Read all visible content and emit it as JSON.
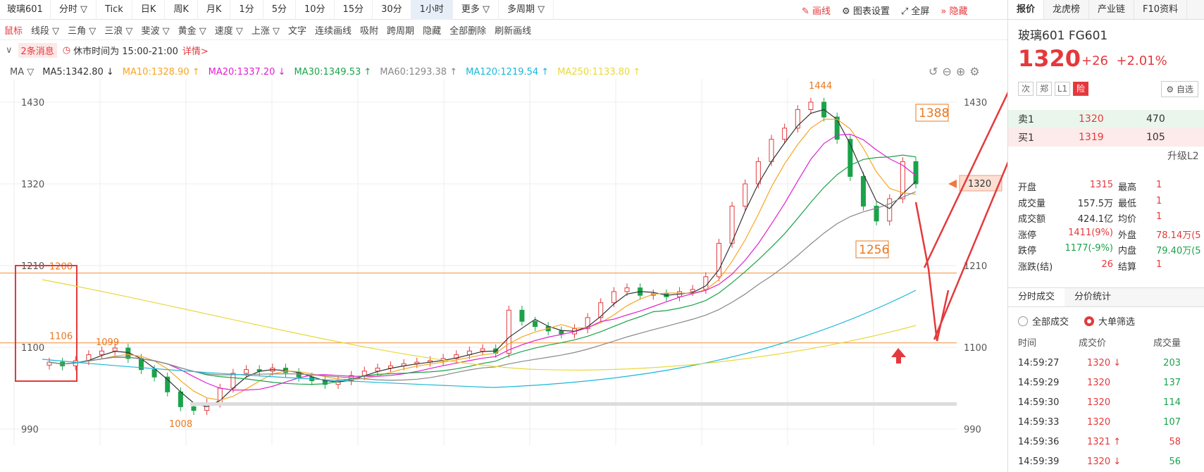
{
  "topbar": {
    "symbol": "玻璃601",
    "tabs": [
      "分时 ▽",
      "Tick",
      "日K",
      "周K",
      "月K",
      "1分",
      "5分",
      "10分",
      "15分",
      "30分",
      "1小时",
      "更多 ▽",
      "多周期 ▽"
    ],
    "active_tab": "1小时",
    "right": {
      "draw": "画线",
      "settings": "图表设置",
      "fullscreen": "全屏",
      "hide": "隐藏"
    }
  },
  "drawbar": {
    "items": [
      "鼠标",
      "线段 ▽",
      "三角 ▽",
      "三浪 ▽",
      "斐波 ▽",
      "黄金 ▽",
      "速度 ▽",
      "上涨 ▽",
      "文字",
      "连续画线",
      "吸附",
      "跨周期",
      "隐藏",
      "全部删除",
      "刷新画线"
    ]
  },
  "msgbar": {
    "messages": "2条消息",
    "note": "休市时间为 15:00-21:00",
    "detail": "详情>"
  },
  "ma": {
    "label": "MA ▽",
    "items": [
      {
        "text": "MA5:1342.80 ↓",
        "color": "#333333"
      },
      {
        "text": "MA10:1328.90 ↑",
        "color": "#f5a623"
      },
      {
        "text": "MA20:1337.20 ↓",
        "color": "#e020d0"
      },
      {
        "text": "MA30:1349.53 ↑",
        "color": "#1aa34a"
      },
      {
        "text": "MA60:1293.38 ↑",
        "color": "#888888"
      },
      {
        "text": "MA120:1219.54 ↑",
        "color": "#19b7d8"
      },
      {
        "text": "MA250:1133.80 ↑",
        "color": "#e8d83a"
      }
    ]
  },
  "chart_data": {
    "type": "candlestick",
    "y_ticks": [
      990,
      1100,
      1210,
      1320,
      1430
    ],
    "ylim": [
      990,
      1460
    ],
    "price_labels": {
      "high": "1444",
      "low": "1008",
      "left_high": "1099"
    },
    "hlines": [
      {
        "label": "1200",
        "value": 1200
      },
      {
        "label": "1106",
        "value": 1106
      }
    ],
    "annotations": [
      "1388",
      "1256"
    ],
    "current_price": "1320",
    "close_series": [
      1080,
      1075,
      1082,
      1090,
      1095,
      1099,
      1085,
      1070,
      1060,
      1040,
      1020,
      1015,
      1025,
      1045,
      1065,
      1070,
      1068,
      1072,
      1066,
      1060,
      1055,
      1050,
      1055,
      1062,
      1068,
      1072,
      1075,
      1078,
      1080,
      1082,
      1085,
      1090,
      1095,
      1098,
      1092,
      1150,
      1135,
      1128,
      1122,
      1118,
      1125,
      1140,
      1160,
      1175,
      1180,
      1170,
      1172,
      1168,
      1175,
      1178,
      1195,
      1240,
      1290,
      1320,
      1350,
      1380,
      1395,
      1420,
      1430,
      1410,
      1380,
      1330,
      1290,
      1270,
      1300,
      1350,
      1320
    ]
  },
  "panel": {
    "tabs": [
      "报价",
      "龙虎榜",
      "产业链",
      "F10资料"
    ],
    "name": "玻璃601  FG601",
    "price": "1320",
    "change": "+26",
    "change_pct": "+2.01%",
    "badges": [
      "次",
      "郑",
      "L1",
      "险"
    ],
    "watch": "自选",
    "sell": {
      "label": "卖1",
      "price": "1320",
      "vol": "470"
    },
    "buy": {
      "label": "买1",
      "price": "1319",
      "vol": "105"
    },
    "upgrade": "升级L2",
    "stats": [
      {
        "k": "开盘",
        "v": "1315",
        "k2": "最高",
        "v2": "1"
      },
      {
        "k": "成交量",
        "v": "157.5万",
        "k2": "最低",
        "v2": "1"
      },
      {
        "k": "成交额",
        "v": "424.1亿",
        "k2": "均价",
        "v2": "1"
      },
      {
        "k": "涨停",
        "v": "1411(9%)",
        "k2": "外盘",
        "v2": "78.14万(5"
      },
      {
        "k": "跌停",
        "v": "1177(-9%)",
        "k2": "内盘",
        "v2": "79.40万(5"
      },
      {
        "k": "涨跌(结)",
        "v": "26",
        "k2": "结算",
        "v2": "1"
      }
    ],
    "subtabs": [
      "分时成交",
      "分价统计"
    ],
    "filter": {
      "all": "全部成交",
      "big": "大单筛选"
    },
    "trade_head": [
      "时间",
      "成交价",
      "成交量"
    ],
    "trades": [
      {
        "t": "14:59:27",
        "p": "1320 ↓",
        "v": "203"
      },
      {
        "t": "14:59:29",
        "p": "1320",
        "v": "137"
      },
      {
        "t": "14:59:30",
        "p": "1320",
        "v": "114"
      },
      {
        "t": "14:59:33",
        "p": "1320",
        "v": "107"
      },
      {
        "t": "14:59:36",
        "p": "1321 ↑",
        "v": "58"
      },
      {
        "t": "14:59:39",
        "p": "1320 ↓",
        "v": "56"
      }
    ]
  }
}
